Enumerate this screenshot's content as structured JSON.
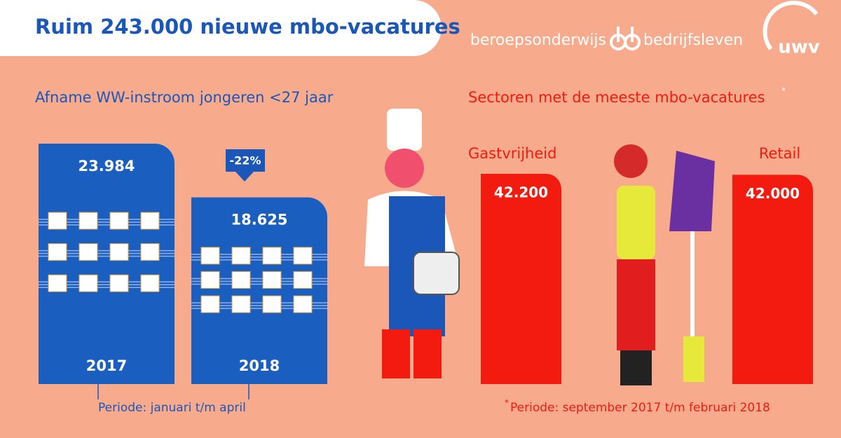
{
  "header": {
    "title": "Ruim 243.000 nieuwe mbo-vacatures",
    "partner_left": "beroepsonderwijs",
    "partner_right": "bedrijfsleven",
    "logo": "uwv"
  },
  "left": {
    "title": "Afname WW-instroom jongeren <27 jaar",
    "items": [
      {
        "year": "2017",
        "value": 23984,
        "value_label": "23.984"
      },
      {
        "year": "2018",
        "value": 18625,
        "value_label": "18.625"
      }
    ],
    "change": "-22%",
    "note": "Periode: januari t/m april"
  },
  "right": {
    "title": "Sectoren met de meeste mbo-vacatures",
    "marker": "*",
    "items": [
      {
        "name": "Gastvrijheid",
        "value": 42200,
        "value_label": "42.200"
      },
      {
        "name": "Retail",
        "value": 42000,
        "value_label": "42.000"
      }
    ],
    "note": "Periode: september 2017 t/m februari 2018"
  }
}
